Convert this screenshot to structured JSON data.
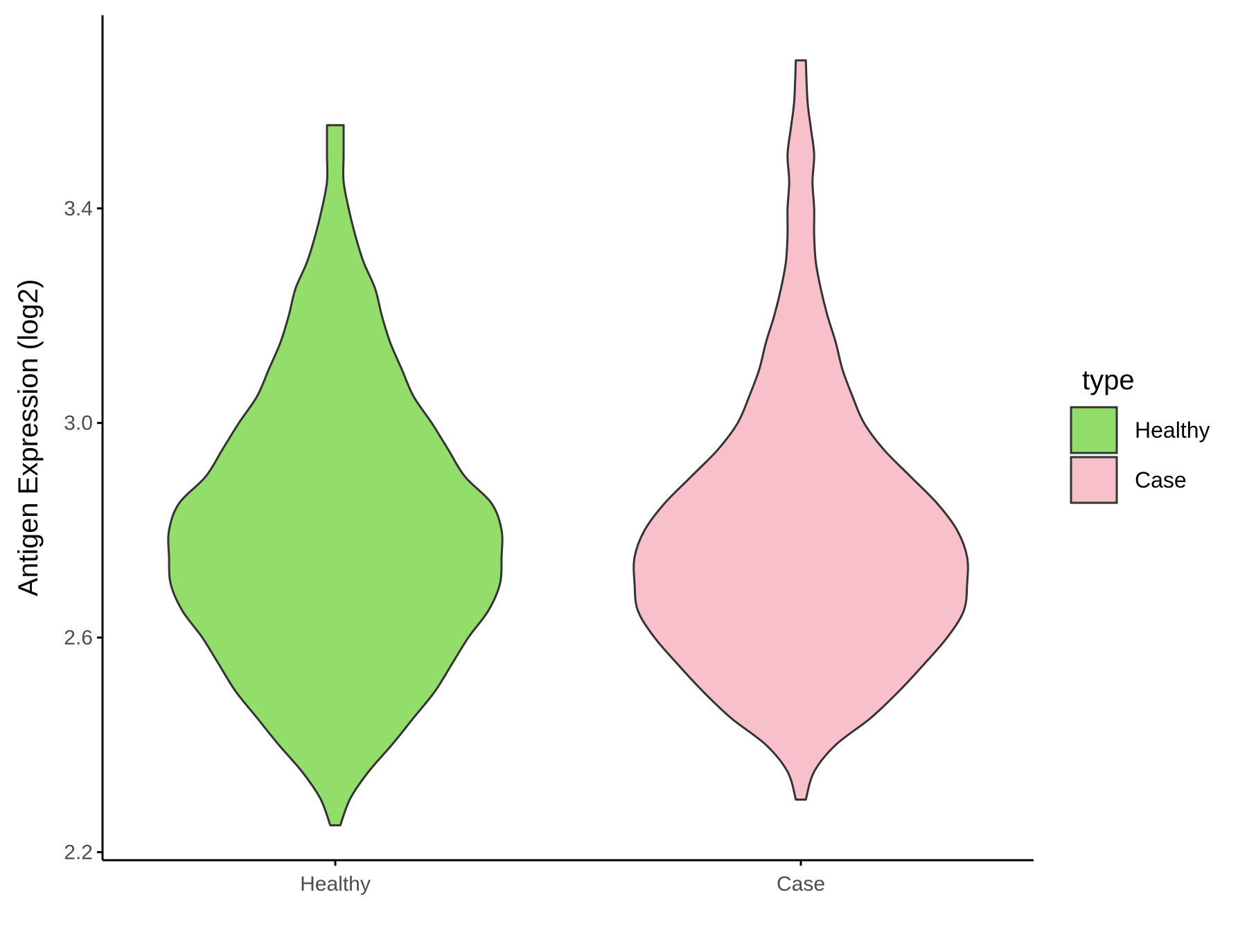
{
  "chart_data": {
    "type": "violin",
    "ylabel": "Antigen Expression (log2)",
    "xlabel": "",
    "categories": [
      "Healthy",
      "Case"
    ],
    "ylim": [
      2.185,
      3.76
    ],
    "yticks": [
      2.2,
      2.6,
      3.0,
      3.4
    ],
    "ytick_labels": [
      "2.2",
      "2.6",
      "3.0",
      "3.4"
    ],
    "legend": {
      "title": "type",
      "position": "right",
      "entries": [
        {
          "label": "Healthy",
          "color": "#93dd6a"
        },
        {
          "label": "Case",
          "color": "#f8c0cb"
        }
      ]
    },
    "series": [
      {
        "name": "Healthy",
        "color": "#93dd6a",
        "min": 2.25,
        "max": 3.555,
        "profile": [
          [
            2.25,
            0.03
          ],
          [
            2.3,
            0.09
          ],
          [
            2.35,
            0.2
          ],
          [
            2.4,
            0.34
          ],
          [
            2.45,
            0.47
          ],
          [
            2.5,
            0.6
          ],
          [
            2.55,
            0.7
          ],
          [
            2.6,
            0.8
          ],
          [
            2.65,
            0.92
          ],
          [
            2.7,
            0.99
          ],
          [
            2.75,
            1.0
          ],
          [
            2.8,
            1.0
          ],
          [
            2.85,
            0.94
          ],
          [
            2.9,
            0.78
          ],
          [
            2.95,
            0.68
          ],
          [
            3.0,
            0.58
          ],
          [
            3.05,
            0.47
          ],
          [
            3.1,
            0.4
          ],
          [
            3.15,
            0.33
          ],
          [
            3.2,
            0.28
          ],
          [
            3.25,
            0.24
          ],
          [
            3.3,
            0.17
          ],
          [
            3.35,
            0.12
          ],
          [
            3.4,
            0.08
          ],
          [
            3.45,
            0.05
          ],
          [
            3.5,
            0.05
          ],
          [
            3.555,
            0.05
          ]
        ]
      },
      {
        "name": "Case",
        "color": "#f8c0cb",
        "min": 2.298,
        "max": 3.676,
        "profile": [
          [
            2.298,
            0.03
          ],
          [
            2.35,
            0.08
          ],
          [
            2.4,
            0.21
          ],
          [
            2.45,
            0.42
          ],
          [
            2.5,
            0.59
          ],
          [
            2.55,
            0.74
          ],
          [
            2.6,
            0.88
          ],
          [
            2.65,
            0.98
          ],
          [
            2.7,
            1.0
          ],
          [
            2.75,
            1.0
          ],
          [
            2.8,
            0.94
          ],
          [
            2.85,
            0.82
          ],
          [
            2.9,
            0.66
          ],
          [
            2.95,
            0.5
          ],
          [
            3.0,
            0.38
          ],
          [
            3.05,
            0.31
          ],
          [
            3.1,
            0.25
          ],
          [
            3.15,
            0.21
          ],
          [
            3.2,
            0.16
          ],
          [
            3.25,
            0.12
          ],
          [
            3.3,
            0.09
          ],
          [
            3.35,
            0.08
          ],
          [
            3.4,
            0.08
          ],
          [
            3.45,
            0.07
          ],
          [
            3.5,
            0.08
          ],
          [
            3.55,
            0.06
          ],
          [
            3.6,
            0.04
          ],
          [
            3.676,
            0.03
          ]
        ]
      }
    ]
  }
}
